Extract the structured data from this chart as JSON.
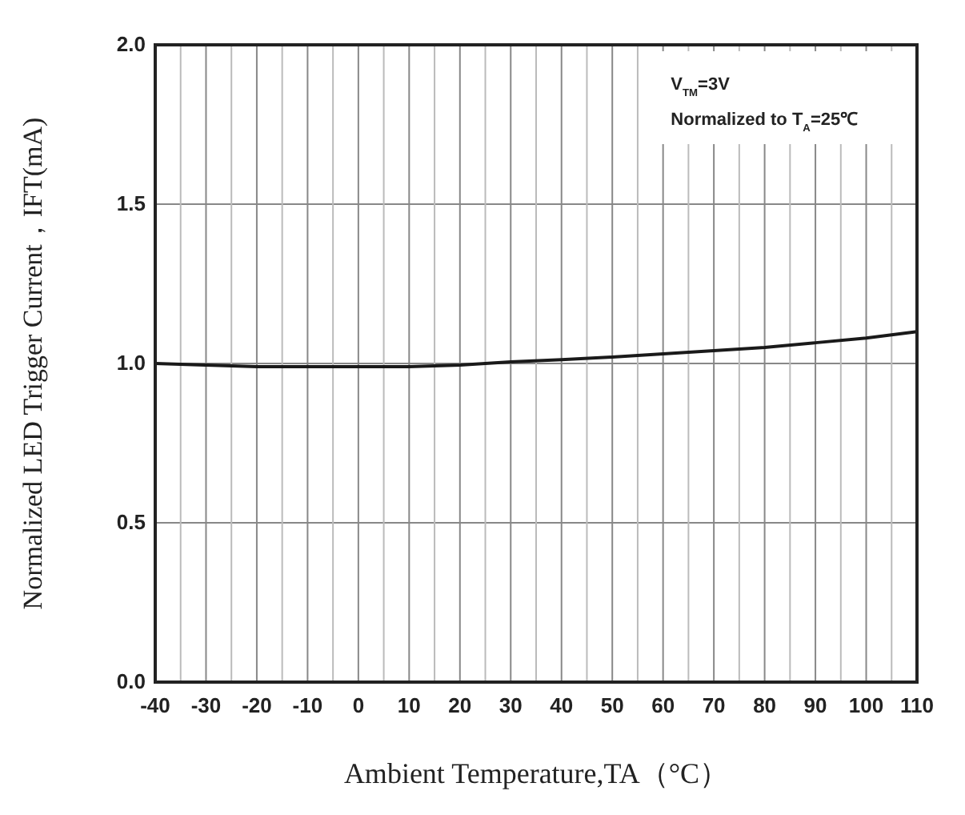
{
  "chart_data": {
    "type": "line",
    "xlabel": "Ambient Temperature,TA（°C）",
    "ylabel": "Normalized LED Trigger Current，IFT(mA)",
    "annotations": [
      "V$_{TM}$=3V",
      "Normalized to T$_{A}$=25℃"
    ],
    "x": [
      -40,
      -30,
      -20,
      -10,
      0,
      10,
      20,
      30,
      40,
      50,
      60,
      70,
      80,
      90,
      100,
      110
    ],
    "series": [
      {
        "color": "#1a1a1a",
        "values": [
          1.0,
          0.995,
          0.99,
          0.99,
          0.99,
          0.99,
          0.995,
          1.005,
          1.012,
          1.02,
          1.03,
          1.04,
          1.05,
          1.065,
          1.08,
          1.1
        ]
      }
    ],
    "xlim": [
      -40,
      110
    ],
    "xticks": [
      -40,
      {
        "value": -35,
        "label": null
      },
      -30,
      {
        "value": -25,
        "label": null
      },
      -20,
      {
        "value": -15,
        "label": null
      },
      -10,
      {
        "value": -5,
        "label": null
      },
      0,
      {
        "value": 5,
        "label": null
      },
      10,
      {
        "value": 15,
        "label": null
      },
      20,
      {
        "value": 25,
        "label": null
      },
      30,
      {
        "value": 35,
        "label": null
      },
      40,
      {
        "value": 45,
        "label": null
      },
      50,
      {
        "value": 55,
        "label": null
      },
      60,
      {
        "value": 65,
        "label": null
      },
      70,
      {
        "value": 75,
        "label": null
      },
      80,
      {
        "value": 85,
        "label": null
      },
      90,
      {
        "value": 95,
        "label": null
      },
      100,
      {
        "value": 105,
        "label": null
      },
      110
    ],
    "ylim": [
      0,
      2.0
    ],
    "yticks": [
      {
        "value": 0,
        "label": "0.0"
      },
      0.5,
      {
        "value": 1,
        "label": "1.0"
      },
      1.5,
      {
        "value": 2,
        "label": "2.0"
      }
    ],
    "grid": true,
    "marker": "none",
    "line_style": "solid"
  }
}
